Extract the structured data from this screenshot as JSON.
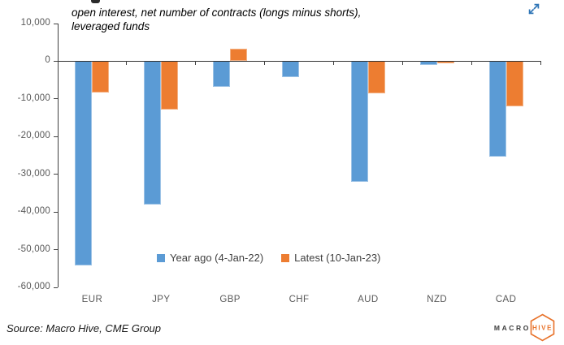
{
  "header": {
    "title_line1": "open interest, net number of contracts (longs minus shorts),",
    "title_line2": "leveraged funds"
  },
  "icons": {
    "expand_icon_color": "#2E75B6"
  },
  "chart_data": {
    "type": "bar",
    "categories": [
      "EUR",
      "JPY",
      "GBP",
      "CHF",
      "AUD",
      "NZD",
      "CAD"
    ],
    "series": [
      {
        "name": "Year ago (4-Jan-22)",
        "color": "#5B9BD5",
        "edge_color": "#9DC3E6",
        "values": [
          -54000,
          -37900,
          -6700,
          -4200,
          -31900,
          -1000,
          -25300
        ]
      },
      {
        "name": "Latest (10-Jan-23)",
        "color": "#ED7D31",
        "edge_color": "#F4B183",
        "values": [
          -8200,
          -12800,
          3400,
          -100,
          -8400,
          -500,
          -12000
        ]
      }
    ],
    "ylim": [
      -60000,
      10000
    ],
    "ytick_step": 10000,
    "ytick_labels": [
      "10,000",
      "0",
      "-10,000",
      "-20,000",
      "-30,000",
      "-40,000",
      "-50,000",
      "-60,000"
    ],
    "xlabel": "",
    "ylabel": "",
    "grid": false,
    "legend_position": "inside-bottom-center"
  },
  "footer": {
    "source": "Source: Macro Hive, CME Group"
  },
  "logo": {
    "macro": "MACRO",
    "hive": "HIVE",
    "accent_color": "#E8722A"
  }
}
